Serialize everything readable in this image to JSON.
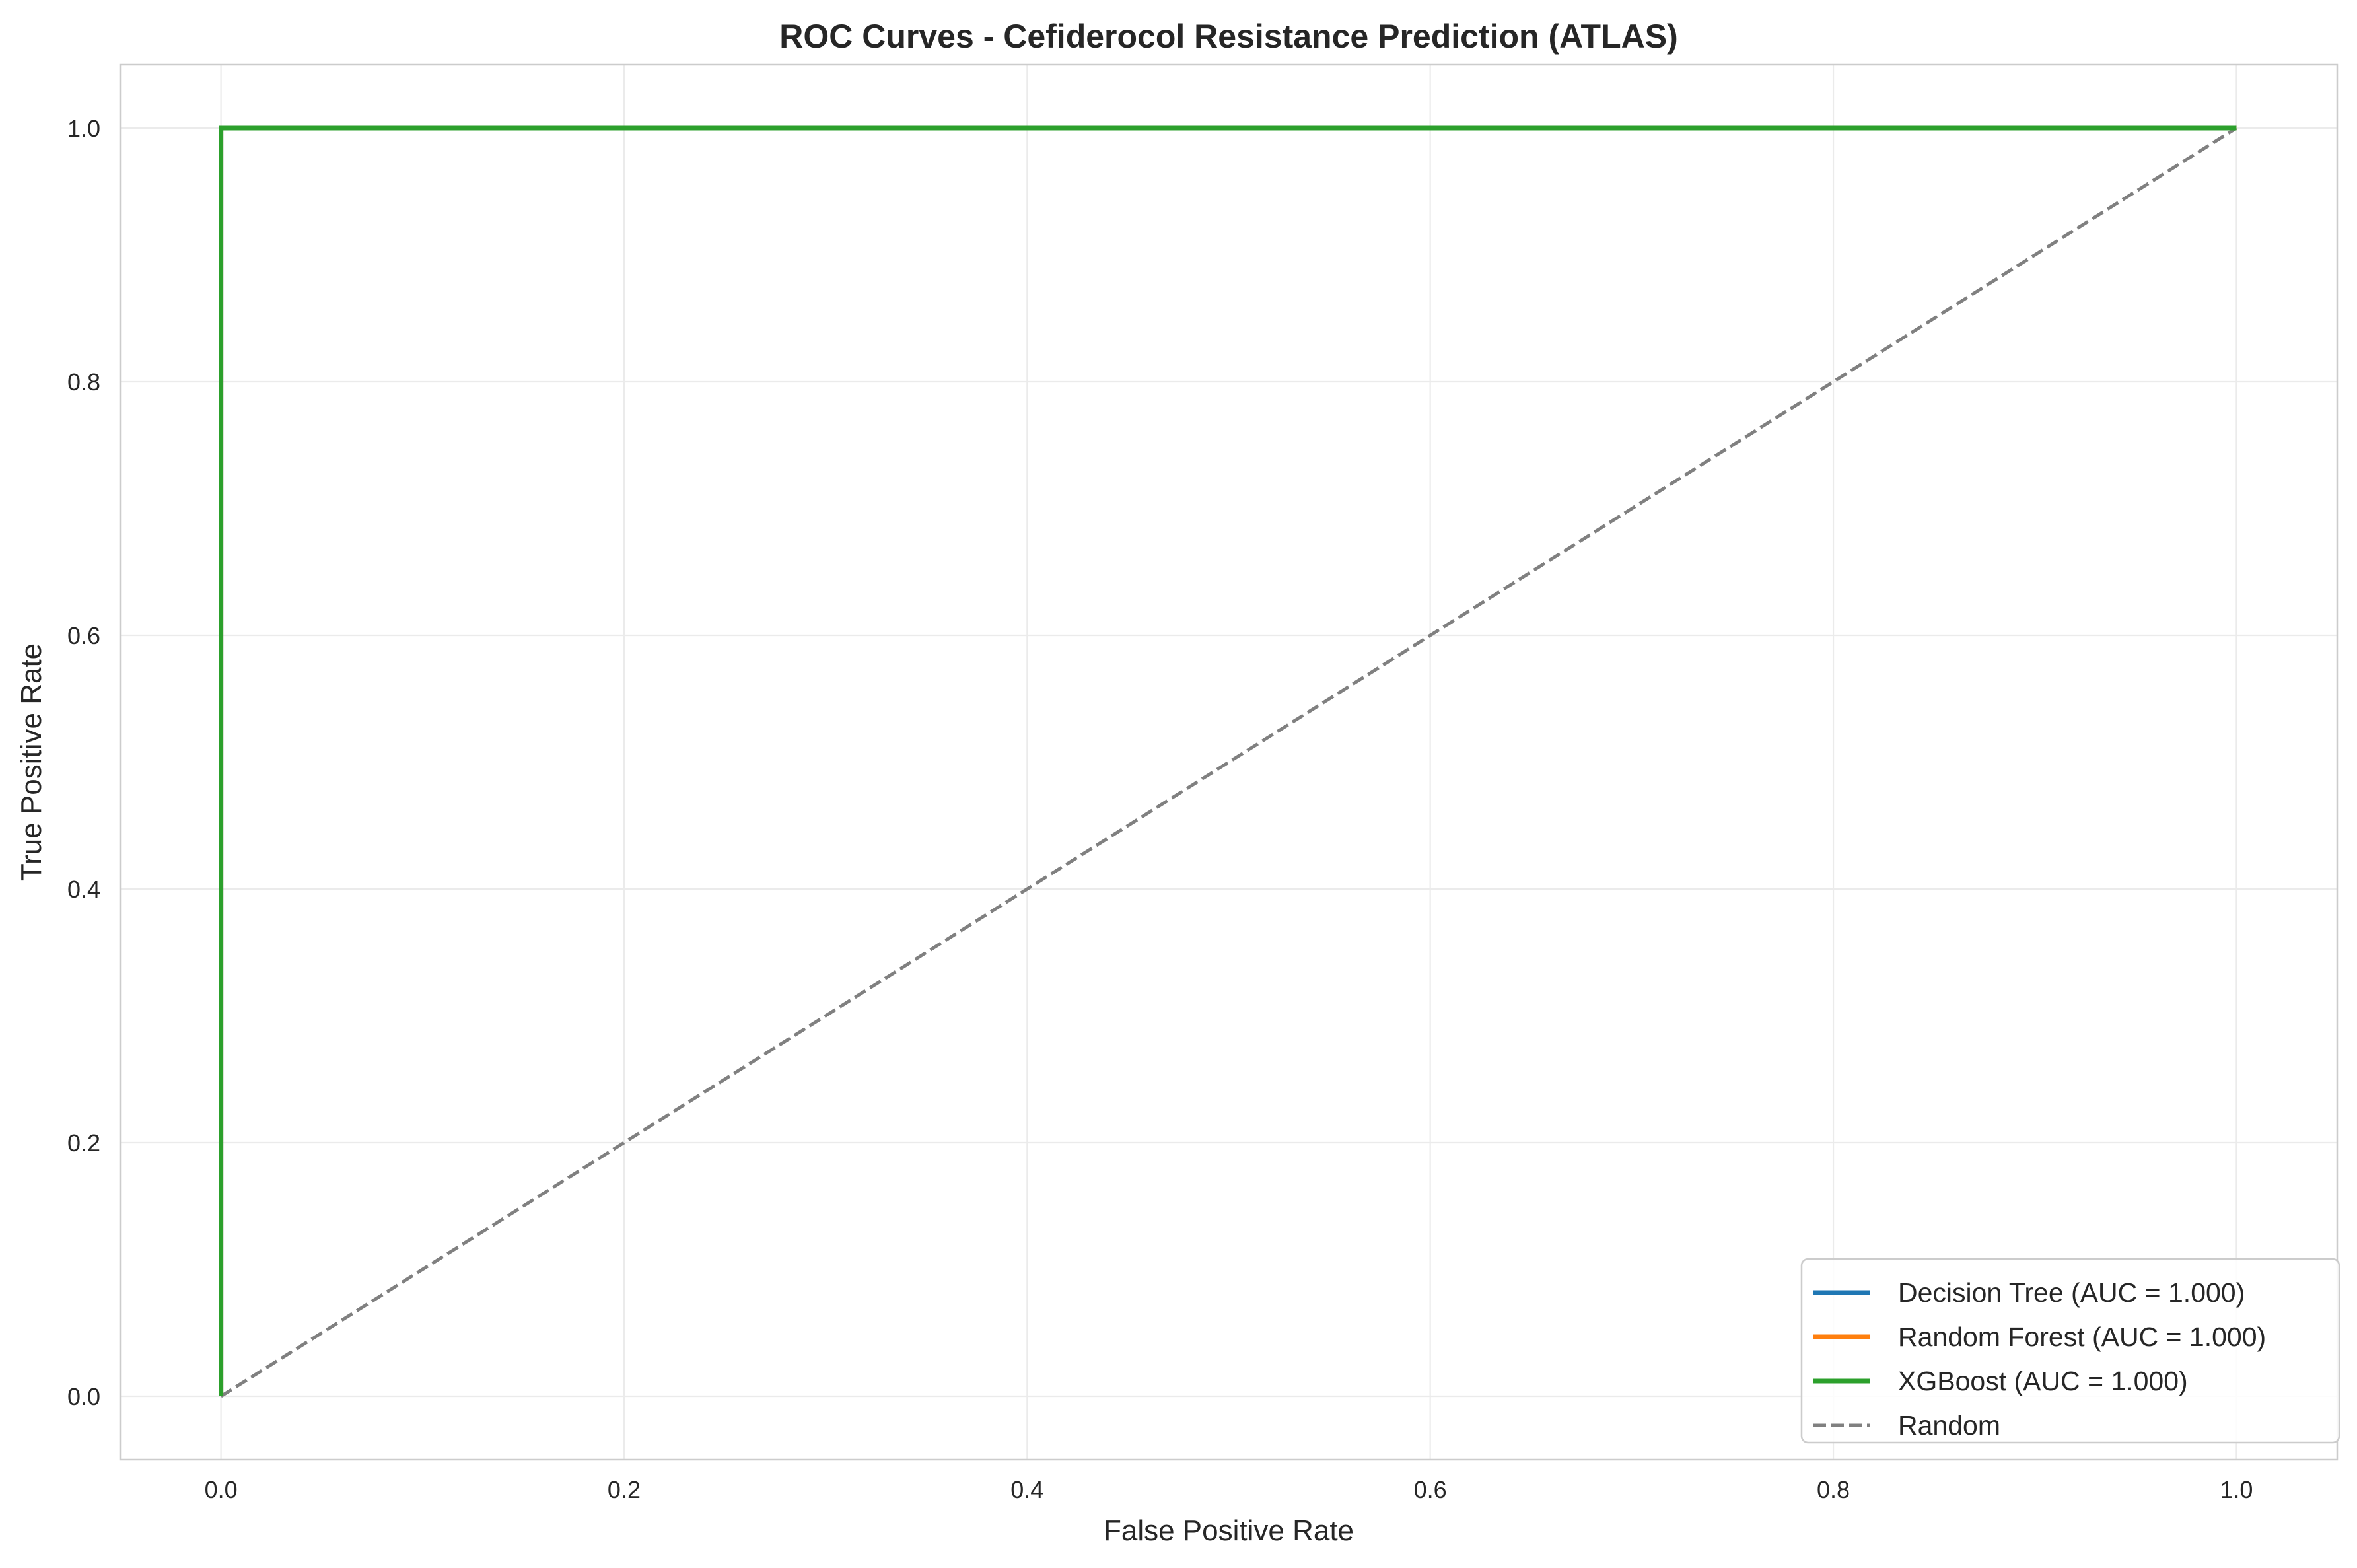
{
  "chart_data": {
    "type": "line",
    "title": "ROC Curves - Cefiderocol Resistance Prediction (ATLAS)",
    "xlabel": "False Positive Rate",
    "ylabel": "True Positive Rate",
    "xlim": [
      -0.05,
      1.05
    ],
    "ylim": [
      -0.05,
      1.05
    ],
    "xticks": [
      0.0,
      0.2,
      0.4,
      0.6,
      0.8,
      1.0
    ],
    "yticks": [
      0.0,
      0.2,
      0.4,
      0.6,
      0.8,
      1.0
    ],
    "xtick_labels": [
      "0.0",
      "0.2",
      "0.4",
      "0.6",
      "0.8",
      "1.0"
    ],
    "ytick_labels": [
      "0.0",
      "0.2",
      "0.4",
      "0.6",
      "0.8",
      "1.0"
    ],
    "grid": true,
    "legend_position": "lower right",
    "series": [
      {
        "name": "Decision Tree (AUC = 1.000)",
        "color": "#1f77b4",
        "style": "solid",
        "x": [
          0.0,
          0.0,
          1.0
        ],
        "y": [
          0.0,
          1.0,
          1.0
        ]
      },
      {
        "name": "Random Forest (AUC = 1.000)",
        "color": "#ff7f0e",
        "style": "solid",
        "x": [
          0.0,
          0.0,
          1.0
        ],
        "y": [
          0.0,
          1.0,
          1.0
        ]
      },
      {
        "name": "XGBoost (AUC = 1.000)",
        "color": "#2ca02c",
        "style": "solid",
        "x": [
          0.0,
          0.0,
          1.0
        ],
        "y": [
          0.0,
          1.0,
          1.0
        ]
      },
      {
        "name": "Random",
        "color": "#808080",
        "style": "dashed",
        "x": [
          0.0,
          1.0
        ],
        "y": [
          0.0,
          1.0
        ]
      }
    ]
  }
}
